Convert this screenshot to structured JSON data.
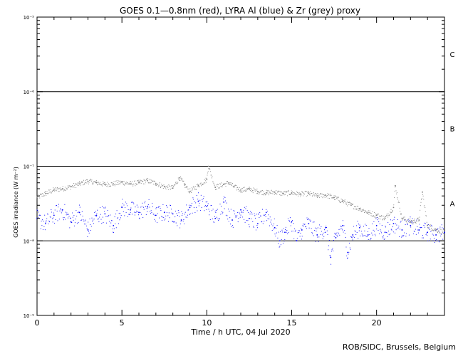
{
  "chart_data": {
    "type": "scatter",
    "title": "GOES 0.1—0.8nm (red), LYRA Al (blue) & Zr (grey) proxy",
    "xlabel": "Time / h UTC, 04 Jul 2020",
    "ylabel": "GOES irradiance (W m⁻²)",
    "y_scale": "log",
    "xlim": [
      0,
      24
    ],
    "ylim": [
      1e-09,
      1e-05
    ],
    "x_ticks": [
      0,
      5,
      10,
      15,
      20
    ],
    "y_tick_labels": [
      {
        "value": 1e-05,
        "label": "10⁻⁵"
      },
      {
        "value": 1e-06,
        "label": "10⁻⁶"
      },
      {
        "value": 1e-07,
        "label": "10⁻⁷"
      },
      {
        "value": 1e-08,
        "label": "10⁻⁸"
      },
      {
        "value": 1e-09,
        "label": "10⁻⁹"
      }
    ],
    "flare_class_thresholds": [
      {
        "value": 1e-06,
        "label_below": "B"
      },
      {
        "value": 1e-07,
        "label_below": "A"
      },
      {
        "value": 1e-08,
        "label_below": ""
      }
    ],
    "flare_classes": [
      {
        "label": "C",
        "value": 3.2e-06
      },
      {
        "label": "B",
        "value": 3.2e-07
      },
      {
        "label": "A",
        "value": 3.2e-08
      }
    ],
    "series": [
      {
        "name": "LYRA Zr (grey)",
        "color": "#808080",
        "x": [
          0,
          0.5,
          1,
          1.5,
          2,
          2.5,
          3,
          3.5,
          4,
          4.5,
          5,
          5.5,
          6,
          6.5,
          7,
          7.5,
          8,
          8.4,
          8.7,
          9,
          9.5,
          10,
          10.1,
          10.5,
          11,
          11.3,
          11.6,
          12,
          12.5,
          13,
          13.5,
          14,
          14.5,
          15,
          15.5,
          16,
          16.5,
          17,
          17.5,
          18,
          18.5,
          19,
          19.5,
          20,
          20.5,
          21,
          21.1,
          21.5,
          22,
          22.5,
          22.7,
          23,
          23.5,
          24
        ],
        "y": [
          3.8e-08,
          4.3e-08,
          4.8e-08,
          5e-08,
          5.3e-08,
          5.8e-08,
          6.3e-08,
          6e-08,
          5.7e-08,
          5.8e-08,
          6.1e-08,
          5.8e-08,
          6e-08,
          6.4e-08,
          5.9e-08,
          5.3e-08,
          5.1e-08,
          7e-08,
          5.6e-08,
          4.6e-08,
          5.5e-08,
          6.6e-08,
          1e-07,
          5.2e-08,
          5.7e-08,
          6e-08,
          5.3e-08,
          4.8e-08,
          4.9e-08,
          4.6e-08,
          4.4e-08,
          4.5e-08,
          4.3e-08,
          4.4e-08,
          4.2e-08,
          4.3e-08,
          4e-08,
          4.1e-08,
          3.8e-08,
          3.4e-08,
          3e-08,
          2.7e-08,
          2.4e-08,
          2.2e-08,
          2e-08,
          2.8e-08,
          5.5e-08,
          2e-08,
          1.8e-08,
          1.9e-08,
          4.5e-08,
          1.6e-08,
          1.4e-08,
          1.3e-08
        ]
      },
      {
        "name": "LYRA Al (blue)",
        "color": "#0000ff",
        "x": [
          0,
          0.5,
          1,
          1.5,
          2,
          2.5,
          3,
          3.5,
          4,
          4.5,
          5,
          5.5,
          6,
          6.5,
          7,
          7.5,
          8,
          8.5,
          9,
          9.5,
          10,
          10.5,
          11,
          11.5,
          12,
          12.5,
          13,
          13.5,
          14,
          14.3,
          14.6,
          15,
          15.3,
          15.6,
          16,
          16.5,
          17,
          17.3,
          17.6,
          18,
          18.3,
          18.6,
          19,
          19.5,
          20,
          20.5,
          21,
          21.5,
          22,
          22.5,
          23,
          23.5,
          24
        ],
        "y": [
          2e-08,
          1.7e-08,
          2.2e-08,
          2.6e-08,
          1.8e-08,
          2.4e-08,
          1.4e-08,
          2.2e-08,
          2.3e-08,
          1.6e-08,
          2.8e-08,
          2.6e-08,
          2.4e-08,
          2.9e-08,
          2.2e-08,
          2.4e-08,
          2.3e-08,
          1.9e-08,
          2.8e-08,
          3.4e-08,
          2.9e-08,
          2e-08,
          3.3e-08,
          1.9e-08,
          2.6e-08,
          2e-08,
          1.7e-08,
          2.4e-08,
          1.5e-08,
          1e-08,
          1.3e-08,
          1.8e-08,
          1e-08,
          1.4e-08,
          1.7e-08,
          1.2e-08,
          1.5e-08,
          6e-09,
          1.1e-08,
          1.6e-08,
          7e-09,
          1.2e-08,
          1.5e-08,
          1.2e-08,
          1.6e-08,
          1.3e-08,
          1.7e-08,
          1.4e-08,
          1.6e-08,
          1.4e-08,
          1.3e-08,
          1.2e-08,
          1.3e-08
        ]
      }
    ]
  },
  "credit": "ROB/SIDC, Brussels, Belgium"
}
